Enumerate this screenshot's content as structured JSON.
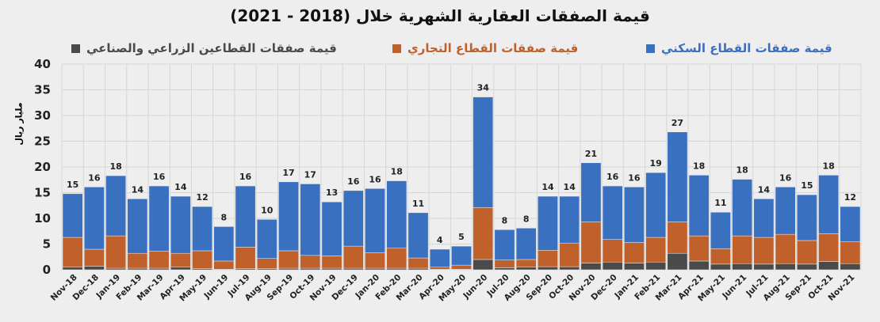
{
  "chart_data": {
    "type": "bar",
    "stacked": true,
    "title": "قيمة الصفقات العقارية الشهرية خلال (2018 - 2021)",
    "ylabel": "مليار ريال",
    "xlabel": "",
    "ylim": [
      0,
      40
    ],
    "yticks": [
      0,
      5,
      10,
      15,
      20,
      25,
      30,
      35,
      40
    ],
    "grid": true,
    "legend_position": "top",
    "categories": [
      "Nov-18",
      "Dec-18",
      "Jan-19",
      "Feb-19",
      "Mar-19",
      "Apr-19",
      "May-19",
      "Jun-19",
      "Jul-19",
      "Aug-19",
      "Sep-19",
      "Oct-19",
      "Nov-19",
      "Dec-19",
      "Jan-20",
      "Feb-20",
      "Mar-20",
      "Apr-20",
      "May-20",
      "Jun-20",
      "Jul-20",
      "Aug-20",
      "Sep-20",
      "Oct-20",
      "Nov-20",
      "Dec-20",
      "Jan-21",
      "Feb-21",
      "Mar-21",
      "Apr-21",
      "May-21",
      "Jun-21",
      "Jul-21",
      "Aug-21",
      "Sep-21",
      "Oct-21",
      "Nov-21"
    ],
    "series": [
      {
        "name": "قيمة صفقات القطاعين الزراعي والصناعي",
        "color": "#4a4a4a",
        "values": [
          0.5,
          0.7,
          0.3,
          0.3,
          0.3,
          0.5,
          0.2,
          0.1,
          0.2,
          0.2,
          0.3,
          0.3,
          0.3,
          0.3,
          0.3,
          0.3,
          0.3,
          0.1,
          0.1,
          2.0,
          0.4,
          0.5,
          0.6,
          0.6,
          1.3,
          1.5,
          1.3,
          1.5,
          3.2,
          1.7,
          1.1,
          1.2,
          1.1,
          1.2,
          1.1,
          1.6,
          1.2
        ]
      },
      {
        "name": "قيمة صفقات القطاع التجاري",
        "color": "#c0612b",
        "values": [
          5.8,
          3.3,
          6.3,
          2.9,
          3.3,
          2.7,
          3.5,
          1.6,
          4.2,
          2.0,
          3.4,
          2.5,
          2.4,
          4.3,
          3.0,
          3.9,
          2.0,
          0.4,
          0.8,
          10.1,
          1.5,
          1.5,
          3.2,
          4.6,
          8.0,
          4.4,
          4.0,
          4.8,
          6.1,
          4.9,
          3.0,
          5.4,
          5.2,
          5.7,
          4.6,
          5.4,
          4.3
        ]
      },
      {
        "name": "قيمة صفقات القطاع السكني",
        "color": "#3a70c0",
        "values": [
          8.5,
          12.1,
          11.7,
          10.6,
          12.7,
          11.1,
          8.6,
          6.7,
          11.9,
          7.6,
          13.4,
          13.9,
          10.5,
          10.8,
          12.5,
          13.1,
          8.8,
          3.5,
          3.7,
          21.5,
          5.9,
          6.1,
          10.5,
          9.1,
          11.5,
          10.4,
          10.8,
          12.6,
          17.5,
          11.8,
          7.1,
          11.0,
          7.5,
          9.2,
          8.9,
          11.4,
          6.8
        ]
      }
    ],
    "total_labels": [
      "15",
      "16",
      "18",
      "14",
      "16",
      "14",
      "12",
      "8",
      "16",
      "10",
      "17",
      "17",
      "13",
      "16",
      "16",
      "18",
      "11",
      "4",
      "5",
      "34",
      "8",
      "8",
      "14",
      "14",
      "21",
      "16",
      "16",
      "19",
      "27",
      "18",
      "11",
      "18",
      "14",
      "16",
      "15",
      "18",
      "12"
    ]
  }
}
